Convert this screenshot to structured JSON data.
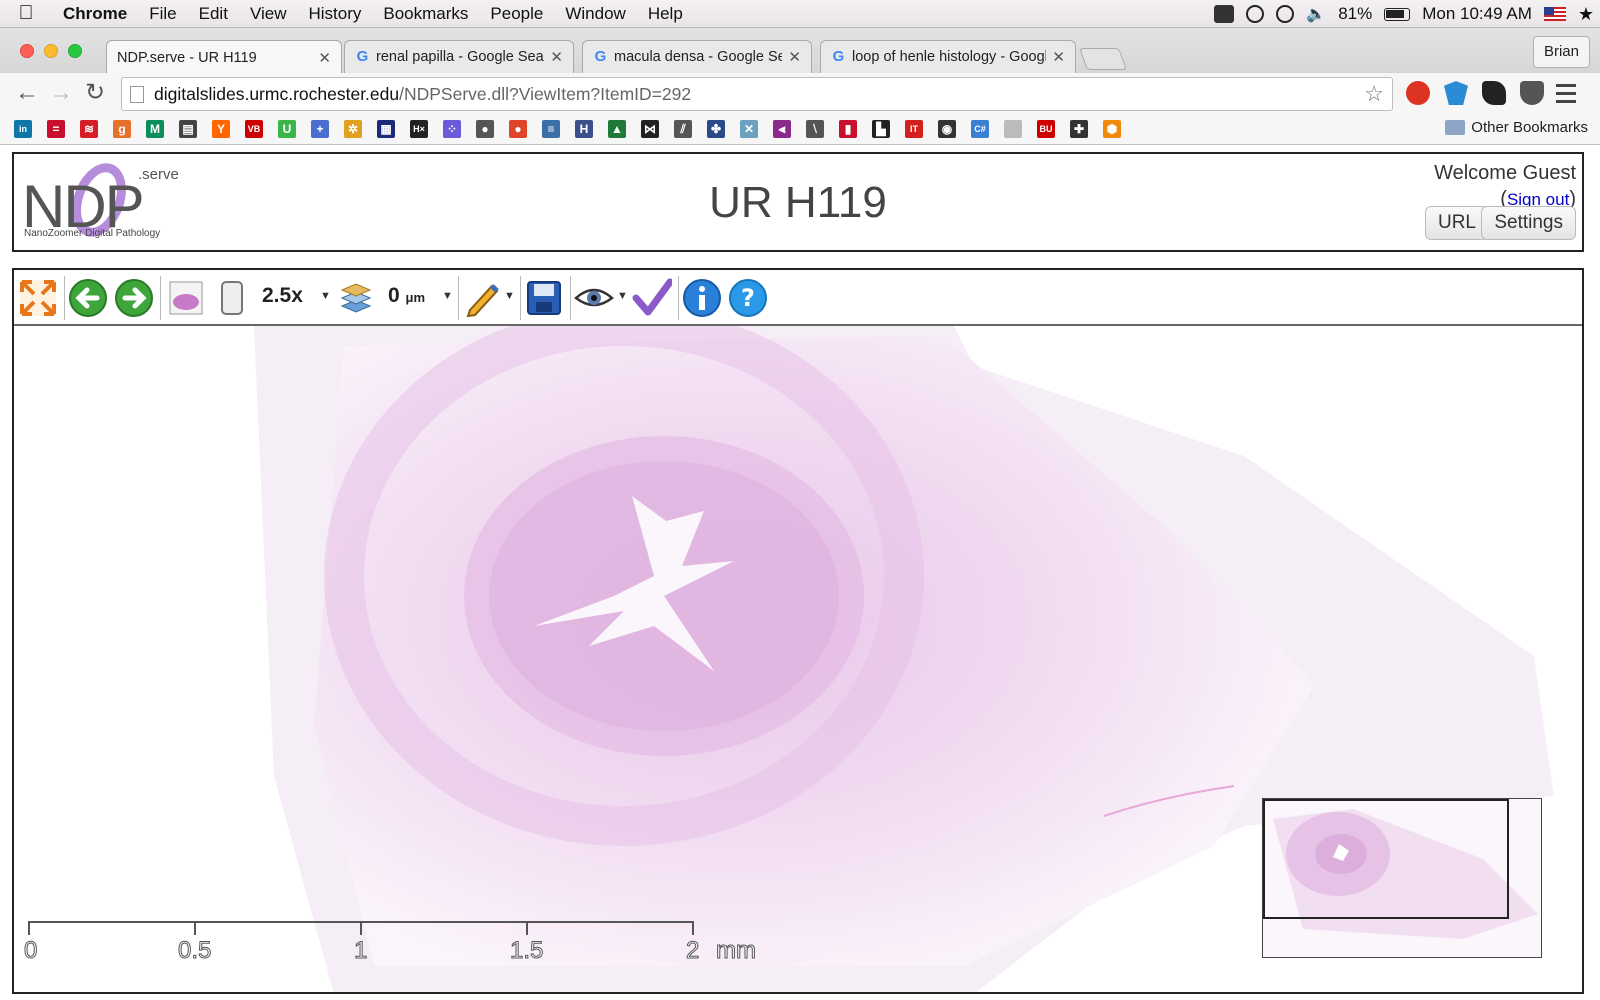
{
  "menubar": {
    "app": "Chrome",
    "items": [
      "File",
      "Edit",
      "View",
      "History",
      "Bookmarks",
      "People",
      "Window",
      "Help"
    ],
    "battery": "81%",
    "clock": "Mon 10:49 AM"
  },
  "tabs": [
    {
      "title": "NDP.serve - UR H119",
      "icon": "page-icon",
      "active": true
    },
    {
      "title": "renal papilla - Google Search",
      "icon": "google-icon",
      "active": false
    },
    {
      "title": "macula densa - Google Search",
      "icon": "google-icon",
      "active": false
    },
    {
      "title": "loop of henle histology - Google Search",
      "icon": "google-icon",
      "active": false
    }
  ],
  "profile": "Brian",
  "omnibox": {
    "host": "digitalslides.urmc.rochester.edu",
    "path": "/NDPServe.dll?ViewItem?ItemID=292"
  },
  "bookmarks": {
    "other_label": "Other Bookmarks",
    "icons": [
      {
        "name": "linkedin-icon",
        "color": "#0e76a8",
        "text": "in"
      },
      {
        "name": "bank-icon",
        "color": "#c8102e",
        "text": "="
      },
      {
        "name": "bofa-icon",
        "color": "#d71e28",
        "text": "≋"
      },
      {
        "name": "goodreads-icon",
        "color": "#e8702a",
        "text": "g"
      },
      {
        "name": "m-icon",
        "color": "#0a8f5a",
        "text": "M"
      },
      {
        "name": "news-icon",
        "color": "#444444",
        "text": "▤"
      },
      {
        "name": "ycombinator-icon",
        "color": "#ff6600",
        "text": "Y"
      },
      {
        "name": "vb-icon",
        "color": "#cc0000",
        "text": "VB"
      },
      {
        "name": "u-icon",
        "color": "#3ab54a",
        "text": "U"
      },
      {
        "name": "plus-icon",
        "color": "#4a6fd1",
        "text": "+"
      },
      {
        "name": "flower-icon",
        "color": "#e0a020",
        "text": "✲"
      },
      {
        "name": "grid-icon",
        "color": "#1c2a7a",
        "text": "▦"
      },
      {
        "name": "hx-icon",
        "color": "#222222",
        "text": "H×"
      },
      {
        "name": "dots-icon",
        "color": "#6b5bd8",
        "text": "⁘"
      },
      {
        "name": "press-icon",
        "color": "#555555",
        "text": "●"
      },
      {
        "name": "tomato-icon",
        "color": "#e0452a",
        "text": "●"
      },
      {
        "name": "database-icon",
        "color": "#3a6fa8",
        "text": "≡"
      },
      {
        "name": "h-icon",
        "color": "#3b4f8a",
        "text": "H"
      },
      {
        "name": "chart-icon",
        "color": "#1f7a3a",
        "text": "▲"
      },
      {
        "name": "bow-icon",
        "color": "#222222",
        "text": "⋈"
      },
      {
        "name": "stripes-icon",
        "color": "#555555",
        "text": "⫽"
      },
      {
        "name": "puzzle-icon",
        "color": "#2a4a8a",
        "text": "✤"
      },
      {
        "name": "molecule-icon",
        "color": "#6aa0c0",
        "text": "✕"
      },
      {
        "name": "feather-icon",
        "color": "#8a2a8a",
        "text": "⫷"
      },
      {
        "name": "lines-icon",
        "color": "#555555",
        "text": "⧵"
      },
      {
        "name": "bars-icon",
        "color": "#c8102e",
        "text": "▮"
      },
      {
        "name": "book-icon",
        "color": "#222222",
        "text": "▙"
      },
      {
        "name": "it-icon",
        "color": "#d4201c",
        "text": "IT"
      },
      {
        "name": "circle-icon",
        "color": "#333333",
        "text": "◉"
      },
      {
        "name": "csharp-icon",
        "color": "#3b7fd4",
        "text": "C#"
      },
      {
        "name": "doc-icon",
        "color": "#bbbbbb",
        "text": ""
      },
      {
        "name": "bu-icon",
        "color": "#cc0000",
        "text": "BU"
      },
      {
        "name": "cross-icon",
        "color": "#333333",
        "text": "✚"
      },
      {
        "name": "hexagon-icon",
        "color": "#f08a0c",
        "text": "⬢"
      }
    ]
  },
  "page": {
    "logo_text": "NDP",
    "logo_serve": ".serve",
    "logo_sub": "NanoZoomer Digital Pathology",
    "title": "UR H119",
    "welcome": "Welcome Guest",
    "signout": "Sign out",
    "url_button": "URL",
    "settings_button": "Settings"
  },
  "viewer": {
    "zoom": "2.5x",
    "focus_value": "0",
    "focus_unit": "μm",
    "scale": {
      "labels": [
        "0",
        "0.5",
        "1",
        "1.5",
        "2"
      ],
      "unit": "mm"
    }
  }
}
